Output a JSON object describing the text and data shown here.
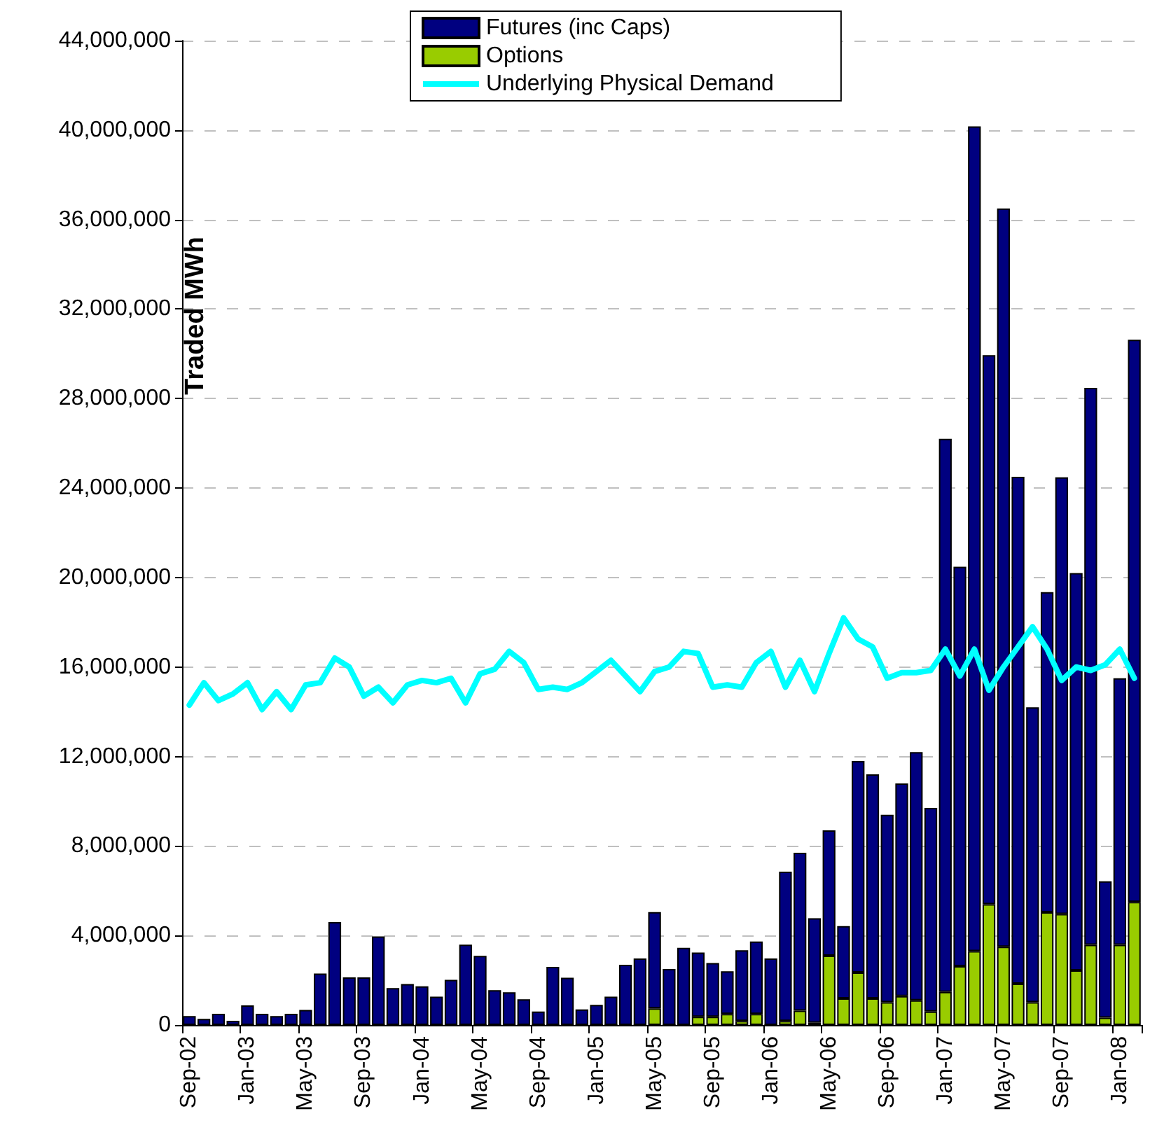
{
  "chart_data": {
    "type": "bar",
    "ylabel": "Traded MWh",
    "stacked": true,
    "grid": "y",
    "legend": "top",
    "categories": [
      "Sep-02",
      null,
      null,
      null,
      "Jan-03",
      null,
      null,
      null,
      "May-03",
      null,
      null,
      null,
      "Sep-03",
      null,
      null,
      null,
      "Jan-04",
      null,
      null,
      null,
      "May-04",
      null,
      null,
      null,
      "Sep-04",
      null,
      null,
      null,
      "Jan-05",
      null,
      null,
      null,
      "May-05",
      null,
      null,
      null,
      "Sep-05",
      null,
      null,
      null,
      "Jan-06",
      null,
      null,
      null,
      "May-06",
      null,
      null,
      null,
      "Sep-06",
      null,
      null,
      null,
      "Jan-07",
      null,
      null,
      null,
      "May-07",
      null,
      null,
      null,
      "Sep-07",
      null,
      null,
      null,
      "Jan-08",
      null
    ],
    "ylim": [
      0,
      44000000
    ],
    "yticks": [
      {
        "value": 0,
        "label": "0"
      },
      {
        "value": 4000000,
        "label": "4,000,000"
      },
      {
        "value": 8000000,
        "label": "8,000,000"
      },
      {
        "value": 12000000,
        "label": "12,000,000"
      },
      {
        "value": 16000000,
        "label": "16,000,000"
      },
      {
        "value": 20000000,
        "label": "20,000,000"
      },
      {
        "value": 24000000,
        "label": "24,000,000"
      },
      {
        "value": 28000000,
        "label": "28,000,000"
      },
      {
        "value": 32000000,
        "label": "32,000,000"
      },
      {
        "value": 36000000,
        "label": "36,000,000"
      },
      {
        "value": 40000000,
        "label": "40,000,000"
      },
      {
        "value": 44000000,
        "label": "44,000,000"
      }
    ],
    "series": [
      {
        "name": "Options",
        "color": "#99cc00",
        "values": [
          0,
          0,
          0,
          0,
          0,
          0,
          0,
          0,
          0,
          0,
          0,
          0,
          0,
          0,
          0,
          0,
          0,
          0,
          0,
          0,
          0,
          0,
          0,
          0,
          0,
          0,
          0,
          0,
          0,
          0,
          0,
          0,
          740000,
          0,
          0,
          370000,
          370000,
          490000,
          180000,
          490000,
          0,
          180000,
          640000,
          100000,
          3100000,
          1190000,
          2350000,
          1190000,
          1020000,
          1290000,
          1100000,
          600000,
          1480000,
          2630000,
          3300000,
          5400000,
          3500000,
          1850000,
          1020000,
          5040000,
          4960000,
          2440000,
          3580000,
          330000,
          3580000,
          5500000
        ]
      },
      {
        "name": "Futures (inc Caps)",
        "color": "#000080",
        "values": [
          400000,
          270000,
          500000,
          190000,
          880000,
          500000,
          400000,
          500000,
          670000,
          2300000,
          4600000,
          2130000,
          2130000,
          3960000,
          1650000,
          1830000,
          1730000,
          1270000,
          2020000,
          3590000,
          3090000,
          1560000,
          1460000,
          1150000,
          600000,
          2600000,
          2110000,
          700000,
          900000,
          1270000,
          2690000,
          2970000,
          4310000,
          2500000,
          3450000,
          2870000,
          2400000,
          1910000,
          3160000,
          3240000,
          2970000,
          6670000,
          7060000,
          4670000,
          5600000,
          3230000,
          9450000,
          10010000,
          8380000,
          9510000,
          11100000,
          9100000,
          24720000,
          17850000,
          36870000,
          24540000,
          33000000,
          22650000,
          13180000,
          14310000,
          19520000,
          17760000,
          24900000,
          6090000,
          11920000,
          25130000
        ]
      },
      {
        "name": "Underlying Physical Demand",
        "type": "line",
        "color": "#00ffff",
        "values": [
          14300000,
          15300000,
          14500000,
          14800000,
          15300000,
          14100000,
          14900000,
          14100000,
          15200000,
          15300000,
          16400000,
          16000000,
          14700000,
          15100000,
          14400000,
          15200000,
          15400000,
          15300000,
          15500000,
          14400000,
          15700000,
          15900000,
          16700000,
          16200000,
          15000000,
          15100000,
          15000000,
          15300000,
          15800000,
          16300000,
          15600000,
          14900000,
          15800000,
          16000000,
          16700000,
          16600000,
          15100000,
          15200000,
          15100000,
          16200000,
          16700000,
          15100000,
          16300000,
          14900000,
          16600000,
          18200000,
          17250000,
          16900000,
          15500000,
          15750000,
          15750000,
          15850000,
          16800000,
          15600000,
          16800000,
          14960000,
          16000000,
          16900000,
          17800000,
          16800000,
          15400000,
          16000000,
          15850000,
          16100000,
          16800000,
          15500000
        ]
      }
    ]
  }
}
